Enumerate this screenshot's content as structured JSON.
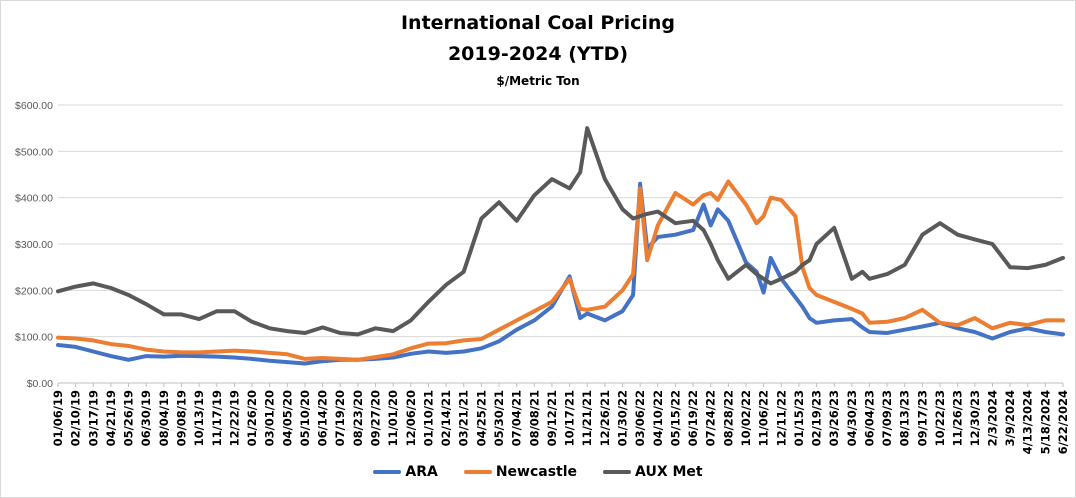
{
  "chart_data": {
    "type": "line",
    "title": "International Coal Pricing",
    "subtitle": "2019-2024 (YTD)",
    "units": "$/Metric Ton",
    "ylim": [
      0,
      600
    ],
    "y_ticks": [
      "$0.00",
      "$100.00",
      "$200.00",
      "$300.00",
      "$400.00",
      "$500.00",
      "$600.00"
    ],
    "x_range": [
      "2019-01-06",
      "2024-06-22"
    ],
    "x_ticks": [
      {
        "date": "2019-01-06",
        "label": "01/06/19"
      },
      {
        "date": "2019-02-10",
        "label": "02/10/19"
      },
      {
        "date": "2019-03-17",
        "label": "03/17/19"
      },
      {
        "date": "2019-04-21",
        "label": "04/21/19"
      },
      {
        "date": "2019-05-26",
        "label": "05/26/19"
      },
      {
        "date": "2019-06-30",
        "label": "06/30/19"
      },
      {
        "date": "2019-08-04",
        "label": "08/04/19"
      },
      {
        "date": "2019-09-08",
        "label": "09/08/19"
      },
      {
        "date": "2019-10-13",
        "label": "10/13/19"
      },
      {
        "date": "2019-11-17",
        "label": "11/17/19"
      },
      {
        "date": "2019-12-22",
        "label": "12/22/19"
      },
      {
        "date": "2020-01-26",
        "label": "01/26/20"
      },
      {
        "date": "2020-03-01",
        "label": "03/01/20"
      },
      {
        "date": "2020-04-05",
        "label": "04/05/20"
      },
      {
        "date": "2020-05-10",
        "label": "05/10/20"
      },
      {
        "date": "2020-06-14",
        "label": "06/14/20"
      },
      {
        "date": "2020-07-19",
        "label": "07/19/20"
      },
      {
        "date": "2020-08-23",
        "label": "08/23/20"
      },
      {
        "date": "2020-09-27",
        "label": "09/27/20"
      },
      {
        "date": "2020-11-01",
        "label": "11/01/20"
      },
      {
        "date": "2020-12-06",
        "label": "12/06/20"
      },
      {
        "date": "2021-01-10",
        "label": "01/10/21"
      },
      {
        "date": "2021-02-14",
        "label": "02/14/21"
      },
      {
        "date": "2021-03-21",
        "label": "03/21/21"
      },
      {
        "date": "2021-04-25",
        "label": "04/25/21"
      },
      {
        "date": "2021-05-30",
        "label": "05/30/21"
      },
      {
        "date": "2021-07-04",
        "label": "07/04/21"
      },
      {
        "date": "2021-08-08",
        "label": "08/08/21"
      },
      {
        "date": "2021-09-12",
        "label": "09/12/21"
      },
      {
        "date": "2021-10-17",
        "label": "10/17/21"
      },
      {
        "date": "2021-11-21",
        "label": "11/21/21"
      },
      {
        "date": "2021-12-26",
        "label": "12/26/21"
      },
      {
        "date": "2022-01-30",
        "label": "01/30/22"
      },
      {
        "date": "2022-03-06",
        "label": "03/06/22"
      },
      {
        "date": "2022-04-10",
        "label": "04/10/22"
      },
      {
        "date": "2022-05-15",
        "label": "05/15/22"
      },
      {
        "date": "2022-06-19",
        "label": "06/19/22"
      },
      {
        "date": "2022-07-24",
        "label": "07/24/22"
      },
      {
        "date": "2022-08-28",
        "label": "08/28/22"
      },
      {
        "date": "2022-10-02",
        "label": "10/02/22"
      },
      {
        "date": "2022-11-06",
        "label": "11/06/22"
      },
      {
        "date": "2022-12-11",
        "label": "12/11/22"
      },
      {
        "date": "2023-01-15",
        "label": "01/15/23"
      },
      {
        "date": "2023-02-19",
        "label": "02/19/23"
      },
      {
        "date": "2023-03-26",
        "label": "03/26/23"
      },
      {
        "date": "2023-04-30",
        "label": "04/30/23"
      },
      {
        "date": "2023-06-04",
        "label": "06/04/23"
      },
      {
        "date": "2023-07-09",
        "label": "07/09/23"
      },
      {
        "date": "2023-08-13",
        "label": "08/13/23"
      },
      {
        "date": "2023-09-17",
        "label": "09/17/23"
      },
      {
        "date": "2023-10-22",
        "label": "10/22/23"
      },
      {
        "date": "2023-11-26",
        "label": "11/26/23"
      },
      {
        "date": "2023-12-30",
        "label": "12/30/23"
      },
      {
        "date": "2024-02-03",
        "label": "2/3/2024"
      },
      {
        "date": "2024-03-09",
        "label": "3/9/2024"
      },
      {
        "date": "2024-04-13",
        "label": "4/13/2024"
      },
      {
        "date": "2024-05-18",
        "label": "5/18/2024"
      },
      {
        "date": "2024-06-22",
        "label": "6/22/2024"
      }
    ],
    "grid": true,
    "legend_position": "bottom",
    "series": [
      {
        "name": "ARA",
        "color": "#4472C4",
        "points": [
          [
            "2019-01-06",
            82
          ],
          [
            "2019-02-10",
            78
          ],
          [
            "2019-03-17",
            68
          ],
          [
            "2019-04-21",
            58
          ],
          [
            "2019-05-26",
            50
          ],
          [
            "2019-06-30",
            58
          ],
          [
            "2019-08-04",
            57
          ],
          [
            "2019-09-08",
            59
          ],
          [
            "2019-10-13",
            58
          ],
          [
            "2019-11-17",
            57
          ],
          [
            "2019-12-22",
            55
          ],
          [
            "2020-01-26",
            52
          ],
          [
            "2020-03-01",
            48
          ],
          [
            "2020-04-05",
            45
          ],
          [
            "2020-05-10",
            42
          ],
          [
            "2020-06-14",
            47
          ],
          [
            "2020-07-19",
            50
          ],
          [
            "2020-08-23",
            50
          ],
          [
            "2020-09-27",
            52
          ],
          [
            "2020-11-01",
            55
          ],
          [
            "2020-12-06",
            63
          ],
          [
            "2021-01-10",
            68
          ],
          [
            "2021-02-14",
            65
          ],
          [
            "2021-03-21",
            68
          ],
          [
            "2021-04-25",
            75
          ],
          [
            "2021-05-30",
            90
          ],
          [
            "2021-07-04",
            115
          ],
          [
            "2021-08-08",
            135
          ],
          [
            "2021-09-12",
            165
          ],
          [
            "2021-10-17",
            230
          ],
          [
            "2021-11-07",
            140
          ],
          [
            "2021-11-21",
            150
          ],
          [
            "2021-12-26",
            135
          ],
          [
            "2022-01-30",
            155
          ],
          [
            "2022-02-20",
            190
          ],
          [
            "2022-03-06",
            430
          ],
          [
            "2022-03-20",
            290
          ],
          [
            "2022-04-10",
            315
          ],
          [
            "2022-05-15",
            320
          ],
          [
            "2022-06-19",
            330
          ],
          [
            "2022-07-10",
            385
          ],
          [
            "2022-07-24",
            340
          ],
          [
            "2022-08-07",
            375
          ],
          [
            "2022-08-28",
            350
          ],
          [
            "2022-10-02",
            260
          ],
          [
            "2022-10-23",
            240
          ],
          [
            "2022-11-06",
            195
          ],
          [
            "2022-11-20",
            270
          ],
          [
            "2022-12-11",
            225
          ],
          [
            "2023-01-08",
            185
          ],
          [
            "2023-01-22",
            165
          ],
          [
            "2023-02-05",
            140
          ],
          [
            "2023-02-19",
            130
          ],
          [
            "2023-03-26",
            135
          ],
          [
            "2023-04-30",
            138
          ],
          [
            "2023-05-21",
            120
          ],
          [
            "2023-06-04",
            110
          ],
          [
            "2023-07-09",
            108
          ],
          [
            "2023-08-13",
            115
          ],
          [
            "2023-09-17",
            122
          ],
          [
            "2023-10-22",
            130
          ],
          [
            "2023-11-26",
            118
          ],
          [
            "2023-12-30",
            110
          ],
          [
            "2024-02-03",
            96
          ],
          [
            "2024-03-09",
            110
          ],
          [
            "2024-04-13",
            118
          ],
          [
            "2024-05-18",
            110
          ],
          [
            "2024-06-22",
            105
          ]
        ]
      },
      {
        "name": "Newcastle",
        "color": "#ED7D31",
        "points": [
          [
            "2019-01-06",
            98
          ],
          [
            "2019-02-10",
            96
          ],
          [
            "2019-03-17",
            92
          ],
          [
            "2019-04-21",
            84
          ],
          [
            "2019-05-26",
            80
          ],
          [
            "2019-06-30",
            72
          ],
          [
            "2019-08-04",
            68
          ],
          [
            "2019-09-08",
            66
          ],
          [
            "2019-10-13",
            66
          ],
          [
            "2019-11-17",
            68
          ],
          [
            "2019-12-22",
            70
          ],
          [
            "2020-01-26",
            68
          ],
          [
            "2020-03-01",
            65
          ],
          [
            "2020-04-05",
            62
          ],
          [
            "2020-05-10",
            52
          ],
          [
            "2020-06-14",
            54
          ],
          [
            "2020-07-19",
            52
          ],
          [
            "2020-08-23",
            50
          ],
          [
            "2020-09-27",
            56
          ],
          [
            "2020-11-01",
            62
          ],
          [
            "2020-12-06",
            75
          ],
          [
            "2021-01-10",
            85
          ],
          [
            "2021-02-14",
            86
          ],
          [
            "2021-03-21",
            92
          ],
          [
            "2021-04-25",
            95
          ],
          [
            "2021-05-30",
            115
          ],
          [
            "2021-07-04",
            135
          ],
          [
            "2021-08-08",
            155
          ],
          [
            "2021-09-12",
            175
          ],
          [
            "2021-10-17",
            225
          ],
          [
            "2021-11-07",
            160
          ],
          [
            "2021-11-21",
            158
          ],
          [
            "2021-12-26",
            165
          ],
          [
            "2022-01-30",
            200
          ],
          [
            "2022-02-20",
            235
          ],
          [
            "2022-03-06",
            420
          ],
          [
            "2022-03-20",
            265
          ],
          [
            "2022-04-10",
            340
          ],
          [
            "2022-05-15",
            410
          ],
          [
            "2022-06-19",
            385
          ],
          [
            "2022-07-10",
            405
          ],
          [
            "2022-07-24",
            410
          ],
          [
            "2022-08-07",
            395
          ],
          [
            "2022-08-28",
            435
          ],
          [
            "2022-10-02",
            385
          ],
          [
            "2022-10-23",
            345
          ],
          [
            "2022-11-06",
            360
          ],
          [
            "2022-11-20",
            400
          ],
          [
            "2022-12-11",
            395
          ],
          [
            "2023-01-08",
            360
          ],
          [
            "2023-01-22",
            250
          ],
          [
            "2023-02-05",
            205
          ],
          [
            "2023-02-19",
            190
          ],
          [
            "2023-03-26",
            175
          ],
          [
            "2023-04-30",
            160
          ],
          [
            "2023-05-21",
            150
          ],
          [
            "2023-06-04",
            130
          ],
          [
            "2023-07-09",
            132
          ],
          [
            "2023-08-13",
            140
          ],
          [
            "2023-09-17",
            158
          ],
          [
            "2023-10-22",
            130
          ],
          [
            "2023-11-26",
            125
          ],
          [
            "2023-12-30",
            140
          ],
          [
            "2024-02-03",
            118
          ],
          [
            "2024-03-09",
            130
          ],
          [
            "2024-04-13",
            125
          ],
          [
            "2024-05-18",
            135
          ],
          [
            "2024-06-22",
            135
          ]
        ]
      },
      {
        "name": "AUX Met",
        "color": "#595959",
        "points": [
          [
            "2019-01-06",
            198
          ],
          [
            "2019-02-10",
            208
          ],
          [
            "2019-03-17",
            215
          ],
          [
            "2019-04-21",
            205
          ],
          [
            "2019-05-26",
            190
          ],
          [
            "2019-06-30",
            170
          ],
          [
            "2019-08-04",
            148
          ],
          [
            "2019-09-08",
            148
          ],
          [
            "2019-10-13",
            138
          ],
          [
            "2019-11-17",
            155
          ],
          [
            "2019-12-22",
            155
          ],
          [
            "2020-01-26",
            132
          ],
          [
            "2020-03-01",
            118
          ],
          [
            "2020-04-05",
            112
          ],
          [
            "2020-05-10",
            108
          ],
          [
            "2020-06-14",
            120
          ],
          [
            "2020-07-19",
            108
          ],
          [
            "2020-08-23",
            105
          ],
          [
            "2020-09-27",
            118
          ],
          [
            "2020-11-01",
            112
          ],
          [
            "2020-12-06",
            135
          ],
          [
            "2021-01-10",
            175
          ],
          [
            "2021-02-14",
            212
          ],
          [
            "2021-03-21",
            240
          ],
          [
            "2021-04-25",
            355
          ],
          [
            "2021-05-30",
            390
          ],
          [
            "2021-07-04",
            350
          ],
          [
            "2021-08-08",
            405
          ],
          [
            "2021-09-12",
            440
          ],
          [
            "2021-10-17",
            420
          ],
          [
            "2021-11-07",
            455
          ],
          [
            "2021-11-21",
            550
          ],
          [
            "2021-12-26",
            440
          ],
          [
            "2022-01-30",
            375
          ],
          [
            "2022-02-20",
            355
          ],
          [
            "2022-03-06",
            360
          ],
          [
            "2022-03-20",
            365
          ],
          [
            "2022-04-10",
            370
          ],
          [
            "2022-05-15",
            345
          ],
          [
            "2022-06-19",
            350
          ],
          [
            "2022-07-10",
            330
          ],
          [
            "2022-07-24",
            300
          ],
          [
            "2022-08-07",
            265
          ],
          [
            "2022-08-28",
            225
          ],
          [
            "2022-10-02",
            255
          ],
          [
            "2022-10-23",
            235
          ],
          [
            "2022-11-06",
            225
          ],
          [
            "2022-11-20",
            215
          ],
          [
            "2022-12-11",
            225
          ],
          [
            "2023-01-08",
            240
          ],
          [
            "2023-01-22",
            255
          ],
          [
            "2023-02-05",
            265
          ],
          [
            "2023-02-19",
            300
          ],
          [
            "2023-03-26",
            335
          ],
          [
            "2023-04-30",
            225
          ],
          [
            "2023-05-21",
            240
          ],
          [
            "2023-06-04",
            225
          ],
          [
            "2023-07-09",
            235
          ],
          [
            "2023-08-13",
            255
          ],
          [
            "2023-09-17",
            320
          ],
          [
            "2023-10-22",
            345
          ],
          [
            "2023-11-26",
            320
          ],
          [
            "2023-12-30",
            310
          ],
          [
            "2024-02-03",
            300
          ],
          [
            "2024-03-09",
            250
          ],
          [
            "2024-04-13",
            248
          ],
          [
            "2024-05-18",
            255
          ],
          [
            "2024-06-22",
            270
          ]
        ]
      }
    ]
  }
}
